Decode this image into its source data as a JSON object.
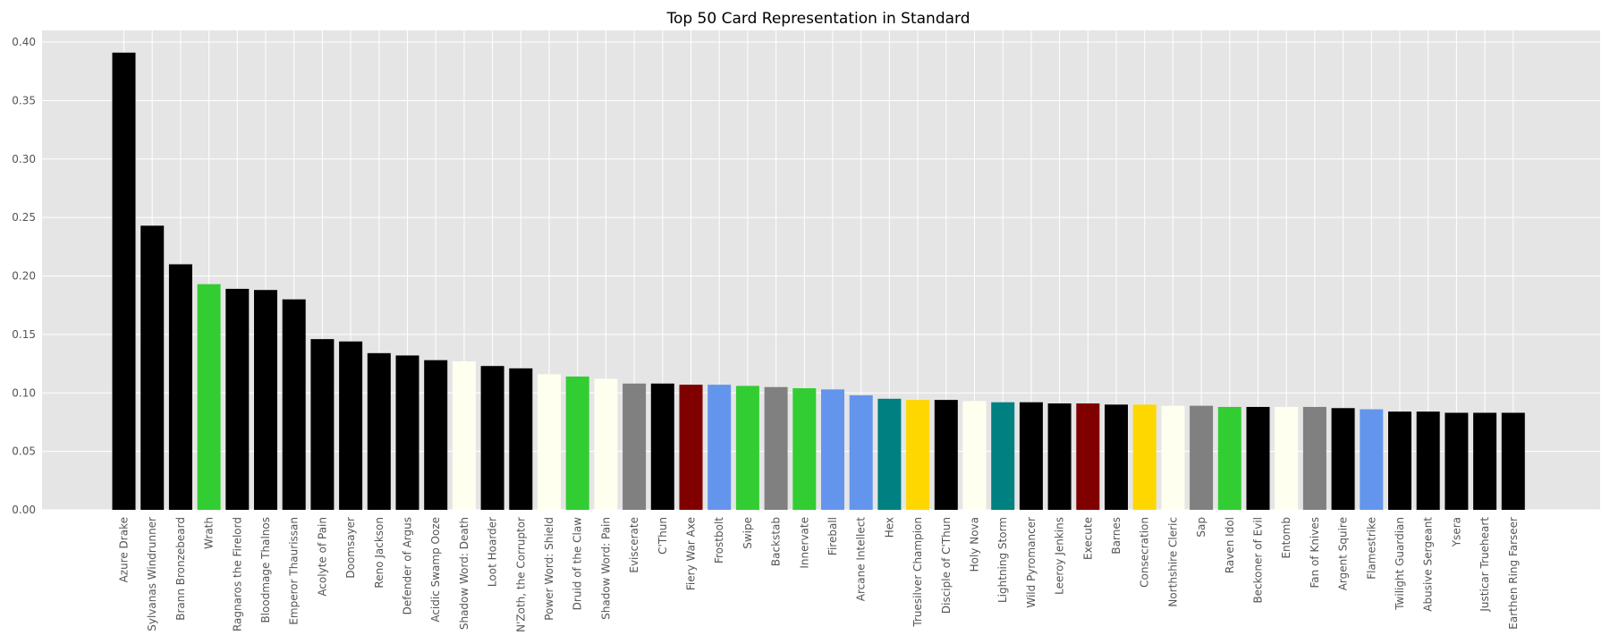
{
  "chart_data": {
    "type": "bar",
    "title": "Top 50 Card Representation in Standard",
    "xlabel": "",
    "ylabel": "",
    "ylim": [
      0,
      0.41
    ],
    "yticks": [
      "0.00",
      "0.05",
      "0.10",
      "0.15",
      "0.20",
      "0.25",
      "0.30",
      "0.35",
      "0.40"
    ],
    "grid": true,
    "background_color": "#e5e5e5",
    "categories": [
      "Azure Drake",
      "Sylvanas Windrunner",
      "Brann Bronzebeard",
      "Wrath",
      "Ragnaros the Firelord",
      "Bloodmage Thalnos",
      "Emperor Thaurissan",
      "Acolyte of Pain",
      "Doomsayer",
      "Reno Jackson",
      "Defender of Argus",
      "Acidic Swamp Ooze",
      "Shadow Word: Death",
      "Loot Hoarder",
      "N'Zoth, the Corruptor",
      "Power Word: Shield",
      "Druid of the Claw",
      "Shadow Word: Pain",
      "Eviscerate",
      "C'Thun",
      "Fiery War Axe",
      "Frostbolt",
      "Swipe",
      "Backstab",
      "Innervate",
      "Fireball",
      "Arcane Intellect",
      "Hex",
      "Truesilver Champion",
      "Disciple of C'Thun",
      "Holy Nova",
      "Lightning Storm",
      "Wild Pyromancer",
      "Leeroy Jenkins",
      "Execute",
      "Barnes",
      "Consecration",
      "Northshire Cleric",
      "Sap",
      "Raven Idol",
      "Beckoner of Evil",
      "Entomb",
      "Fan of Knives",
      "Argent Squire",
      "Flamestrike",
      "Twilight Guardian",
      "Abusive Sergeant",
      "Ysera",
      "Justicar Trueheart",
      "Earthen Ring Farseer"
    ],
    "values": [
      0.391,
      0.243,
      0.21,
      0.193,
      0.189,
      0.188,
      0.18,
      0.146,
      0.144,
      0.134,
      0.132,
      0.128,
      0.127,
      0.123,
      0.121,
      0.116,
      0.114,
      0.112,
      0.108,
      0.108,
      0.107,
      0.107,
      0.106,
      0.105,
      0.104,
      0.103,
      0.098,
      0.095,
      0.094,
      0.094,
      0.093,
      0.092,
      0.092,
      0.091,
      0.091,
      0.09,
      0.09,
      0.089,
      0.089,
      0.088,
      0.088,
      0.088,
      0.088,
      0.087,
      0.086,
      0.084,
      0.084,
      0.083,
      0.083,
      0.083
    ],
    "colors": [
      "#000000",
      "#000000",
      "#000000",
      "#32cd32",
      "#000000",
      "#000000",
      "#000000",
      "#000000",
      "#000000",
      "#000000",
      "#000000",
      "#000000",
      "#fffff0",
      "#000000",
      "#000000",
      "#fffff0",
      "#32cd32",
      "#fffff0",
      "#808080",
      "#000000",
      "#800000",
      "#6495ed",
      "#32cd32",
      "#808080",
      "#32cd32",
      "#6495ed",
      "#6495ed",
      "#008080",
      "#ffd700",
      "#000000",
      "#fffff0",
      "#008080",
      "#000000",
      "#000000",
      "#800000",
      "#000000",
      "#ffd700",
      "#fffff0",
      "#808080",
      "#32cd32",
      "#000000",
      "#fffff0",
      "#808080",
      "#000000",
      "#6495ed",
      "#000000",
      "#000000",
      "#000000",
      "#000000",
      "#000000"
    ]
  }
}
